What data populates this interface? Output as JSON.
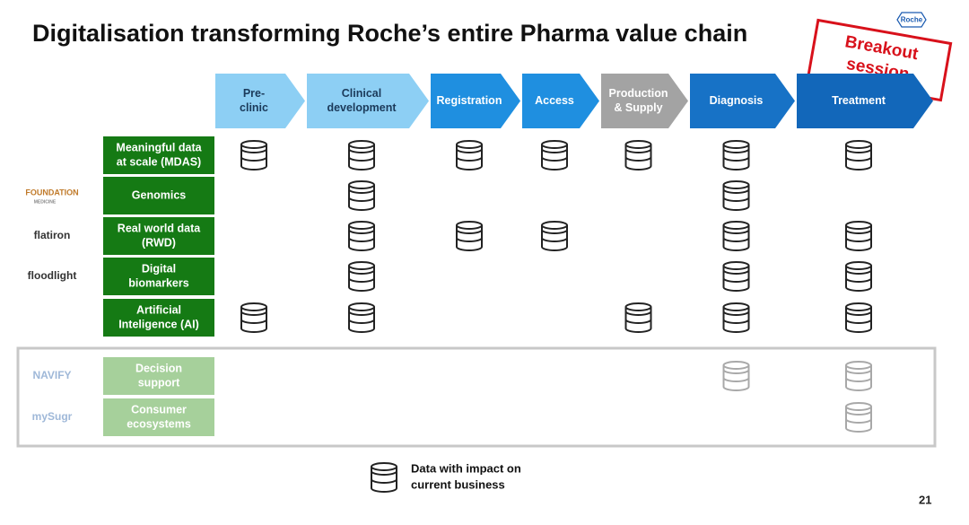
{
  "header": {
    "title": "Digitalisation transforming Roche’s entire Pharma value chain",
    "brand": "Roche",
    "stamp": [
      "Breakout",
      "session"
    ]
  },
  "stages": [
    {
      "lines": [
        "Pre-",
        "clinic"
      ],
      "color": "#8dcff4",
      "text_color": "#1b3a5a"
    },
    {
      "lines": [
        "Clinical",
        "development"
      ],
      "color": "#8dcff4",
      "text_color": "#1b3a5a"
    },
    {
      "lines": [
        "Registration"
      ],
      "color": "#1f8fe0",
      "text_color": "#ffffff"
    },
    {
      "lines": [
        "Access"
      ],
      "color": "#1f8fe0",
      "text_color": "#ffffff"
    },
    {
      "lines": [
        "Production",
        "& Supply"
      ],
      "color": "#a3a3a3",
      "text_color": "#ffffff"
    },
    {
      "lines": [
        "Diagnosis"
      ],
      "color": "#1772c6",
      "text_color": "#ffffff"
    },
    {
      "lines": [
        "Treatment"
      ],
      "color": "#1267ba",
      "text_color": "#ffffff"
    }
  ],
  "rows": [
    {
      "lines": [
        "Meaningful data",
        "at scale (MDAS)"
      ],
      "cells": [
        true,
        true,
        true,
        true,
        true,
        true,
        true
      ]
    },
    {
      "lines": [
        "Genomics"
      ],
      "logo": "FOUNDATION",
      "logo_sub": "MEDICINE",
      "cells": [
        false,
        true,
        false,
        false,
        false,
        true,
        false
      ]
    },
    {
      "lines": [
        "Real world data",
        "(RWD)"
      ],
      "logo": "flatiron",
      "cells": [
        false,
        true,
        true,
        true,
        false,
        true,
        true
      ]
    },
    {
      "lines": [
        "Digital",
        "biomarkers"
      ],
      "logo": "floodlight",
      "cells": [
        false,
        true,
        false,
        false,
        false,
        true,
        true
      ]
    },
    {
      "lines": [
        "Artificial",
        "Inteligence (AI)"
      ],
      "cells": [
        true,
        true,
        false,
        false,
        true,
        true,
        true
      ]
    },
    {
      "lines": [
        "Decision",
        "support"
      ],
      "logo": "NAVIFY",
      "faded": true,
      "cells": [
        false,
        false,
        false,
        false,
        false,
        true,
        true
      ]
    },
    {
      "lines": [
        "Consumer",
        "ecosystems"
      ],
      "logo": "mySugr",
      "faded": true,
      "cells": [
        false,
        false,
        false,
        false,
        false,
        false,
        true
      ]
    }
  ],
  "legend": {
    "lines": [
      "Data with impact on",
      "current business"
    ]
  },
  "footer": {
    "page": "21"
  }
}
